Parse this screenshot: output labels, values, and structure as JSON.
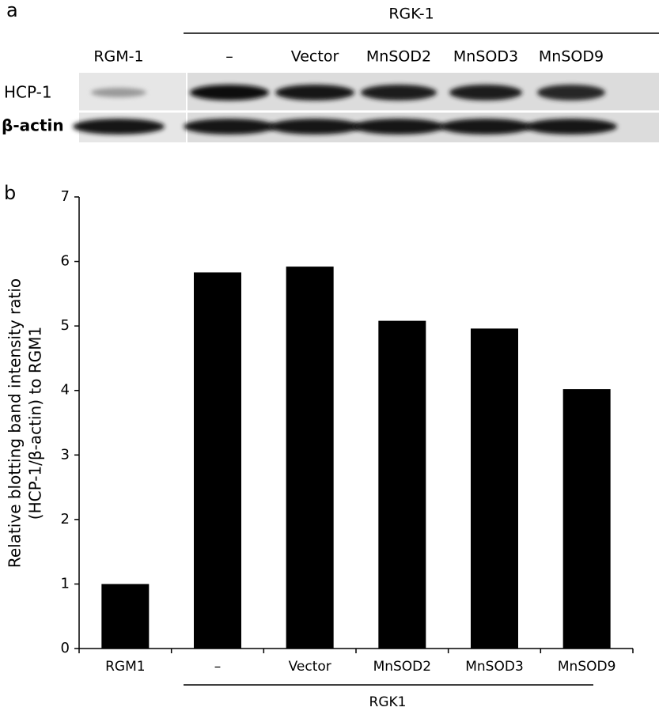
{
  "panel_a": {
    "label": "a",
    "group_label": "RGK-1",
    "lanes": [
      "RGM-1",
      "–",
      "Vector",
      "MnSOD2",
      "MnSOD3",
      "MnSOD9"
    ],
    "rows": [
      "HCP-1",
      "β-actin"
    ]
  },
  "chart_data": {
    "type": "bar",
    "panel_label": "b",
    "ylabel": [
      "Relative blotting band intensity ratio",
      "(HCP-1/β-actin) to RGM1"
    ],
    "categories": [
      "RGM1",
      "–",
      "Vector",
      "MnSOD2",
      "MnSOD3",
      "MnSOD9"
    ],
    "values": [
      1.0,
      5.83,
      5.92,
      5.08,
      4.96,
      4.02
    ],
    "color": "#000000",
    "group_label": "RGK1",
    "ylim": [
      0,
      7
    ],
    "yticks": [
      0,
      1,
      2,
      3,
      4,
      5,
      6,
      7
    ]
  }
}
